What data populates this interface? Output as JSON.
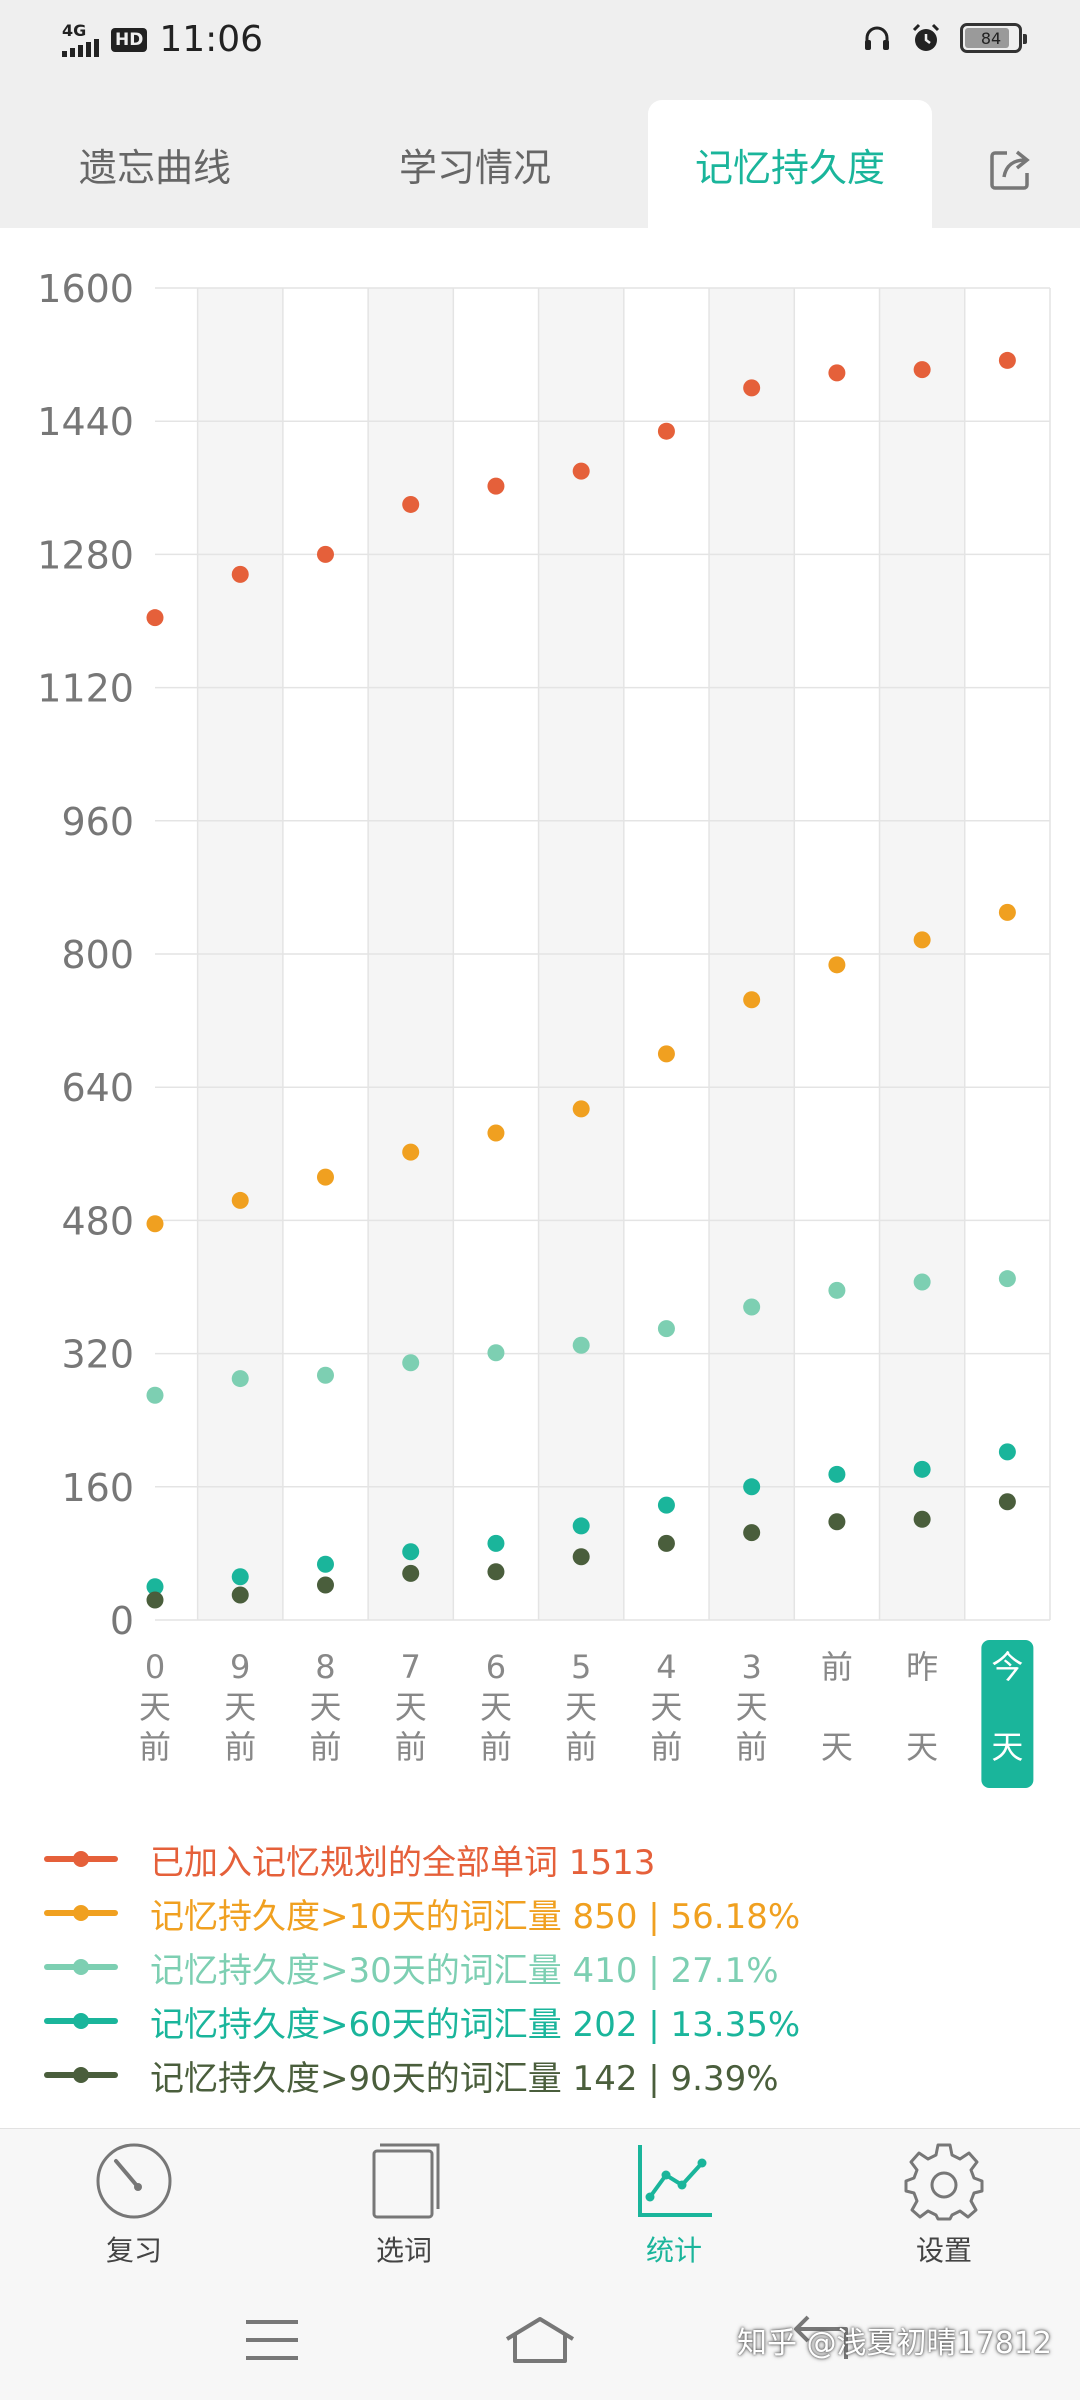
{
  "status_bar": {
    "network": "4G",
    "hd": "HD",
    "time": "11:06",
    "battery": "84",
    "battery_fraction": 0.84
  },
  "tabs": [
    {
      "label": "遗忘曲线",
      "active": false
    },
    {
      "label": "学习情况",
      "active": false
    },
    {
      "label": "记忆持久度",
      "active": true
    }
  ],
  "share_icon": "share-icon",
  "chart_data": {
    "type": "scatter",
    "categories": [
      [
        "0",
        "天",
        "前"
      ],
      [
        "9",
        "天",
        "前"
      ],
      [
        "8",
        "天",
        "前"
      ],
      [
        "7",
        "天",
        "前"
      ],
      [
        "6",
        "天",
        "前"
      ],
      [
        "5",
        "天",
        "前"
      ],
      [
        "4",
        "天",
        "前"
      ],
      [
        "3",
        "天",
        "前"
      ],
      [
        "前",
        "",
        "天"
      ],
      [
        "昨",
        "",
        "天"
      ],
      [
        "今",
        "",
        "天"
      ]
    ],
    "y_ticks": [
      "0",
      "160",
      "320",
      "480",
      "640",
      "800",
      "960",
      "1120",
      "1280",
      "1440",
      "1600"
    ],
    "ylim": [
      0,
      1600
    ],
    "grid": true,
    "series": [
      {
        "color": "#e5603a",
        "values": [
          1204,
          1256,
          1280,
          1340,
          1362,
          1380,
          1428,
          1480,
          1498,
          1502,
          1513
        ]
      },
      {
        "color": "#f0a020",
        "values": [
          476,
          504,
          532,
          562,
          585,
          614,
          680,
          745,
          787,
          817,
          850
        ]
      },
      {
        "color": "#7dcfb2",
        "values": [
          270,
          290,
          294,
          309,
          321,
          330,
          350,
          376,
          396,
          406,
          410
        ]
      },
      {
        "color": "#1ab59b",
        "values": [
          40,
          52,
          67,
          82,
          92,
          113,
          138,
          160,
          175,
          181,
          202
        ]
      },
      {
        "color": "#4a5e3c",
        "values": [
          24,
          30,
          42,
          56,
          58,
          76,
          92,
          105,
          118,
          121,
          142
        ]
      }
    ],
    "legend": [
      {
        "color": "#e5603a",
        "text": "已加入记忆规划的全部单词  1513"
      },
      {
        "color": "#f0a020",
        "text": "记忆持久度>10天的词汇量  850  |  56.18%"
      },
      {
        "color": "#7dcfb2",
        "text": "记忆持久度>30天的词汇量  410  |  27.1%"
      },
      {
        "color": "#1ab59b",
        "text": "记忆持久度>60天的词汇量  202  |  13.35%"
      },
      {
        "color": "#4a5e3c",
        "text": "记忆持久度>90天的词汇量  142  |  9.39%"
      }
    ]
  },
  "bottom_nav": [
    {
      "label": "复习",
      "icon": "review-dial-icon",
      "active": false
    },
    {
      "label": "选词",
      "icon": "word-book-icon",
      "active": false
    },
    {
      "label": "统计",
      "icon": "statistics-chart-icon",
      "active": true
    },
    {
      "label": "设置",
      "icon": "settings-gear-icon",
      "active": false
    }
  ],
  "system_nav": {
    "menu_icon": "menu-icon",
    "home_icon": "home-icon",
    "back_icon": "back-icon"
  },
  "watermark": "知乎 @浅夏初晴17812"
}
